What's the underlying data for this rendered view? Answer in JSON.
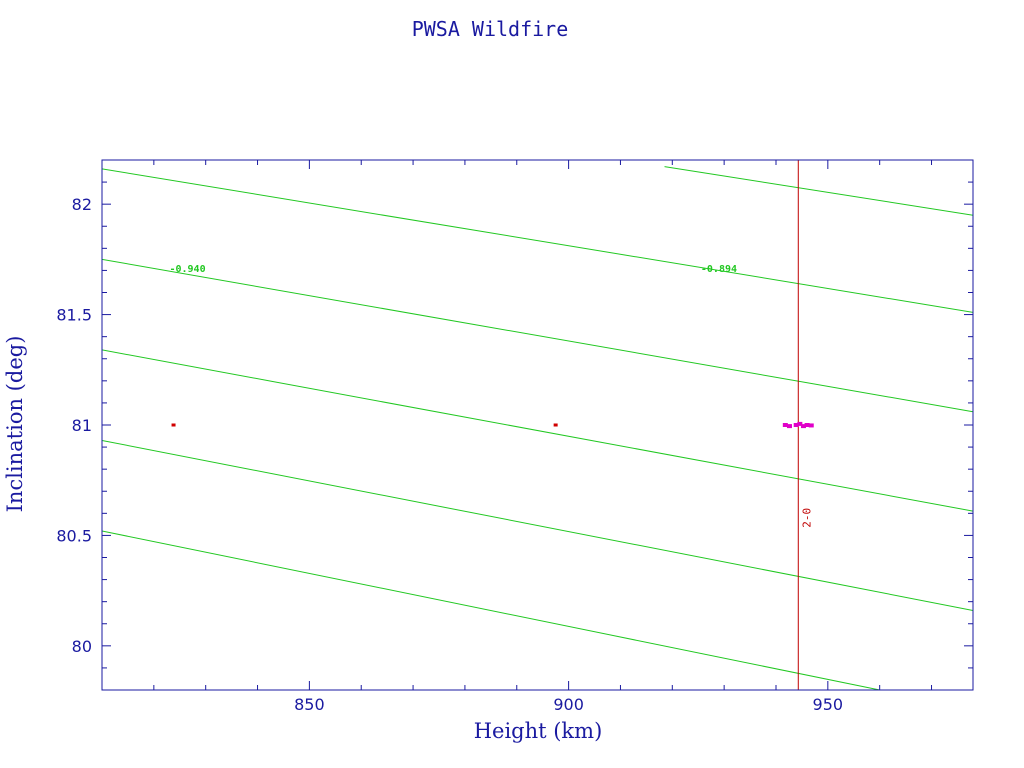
{
  "chart_data": {
    "type": "line",
    "title": "PWSA Wildfire",
    "xlabel": "Height (km)",
    "ylabel": "Inclination (deg)",
    "xlim": [
      810,
      978
    ],
    "ylim": [
      79.8,
      82.2
    ],
    "x_ticks": [
      850,
      900,
      950
    ],
    "x_tick_labels": [
      "850",
      "900",
      "950"
    ],
    "y_ticks": [
      80,
      80.5,
      81,
      81.5,
      82
    ],
    "y_tick_labels": [
      "80",
      "80.5",
      "81",
      "81.5",
      "82"
    ],
    "grid": false,
    "colors": {
      "frame": "#1a1aa0",
      "contour": "#22c822",
      "marker_line": "#c00000",
      "cluster": "#e000c8",
      "point": "#d00000"
    },
    "contours": [
      {
        "start": [
          918.5,
          82.17
        ],
        "end": [
          978,
          81.95
        ]
      },
      {
        "start": [
          810,
          82.16
        ],
        "end": [
          978,
          81.51
        ]
      },
      {
        "start": [
          810,
          81.75
        ],
        "end": [
          978,
          81.06
        ]
      },
      {
        "start": [
          810,
          81.34
        ],
        "end": [
          978,
          80.61
        ]
      },
      {
        "start": [
          810,
          80.93
        ],
        "end": [
          978,
          80.16
        ]
      },
      {
        "start": [
          810,
          80.52
        ],
        "end": [
          960,
          79.8
        ]
      }
    ],
    "contour_labels": [
      {
        "text": "-0.940",
        "x": 826.5,
        "y": 81.71
      },
      {
        "text": "-0.894",
        "x": 929,
        "y": 81.71
      }
    ],
    "marker_line": {
      "x": 944.3,
      "label": "2-0",
      "label_y": 80.58
    },
    "points": [
      {
        "x": 823.8,
        "y": 81.0
      },
      {
        "x": 897.5,
        "y": 81.0
      }
    ],
    "cluster_points": [
      {
        "x": 941.8,
        "y": 81.0
      },
      {
        "x": 942.6,
        "y": 80.995
      },
      {
        "x": 943.9,
        "y": 81.0
      },
      {
        "x": 944.6,
        "y": 81.005
      },
      {
        "x": 945.3,
        "y": 80.995
      },
      {
        "x": 946.0,
        "y": 81.0
      },
      {
        "x": 946.8,
        "y": 80.998
      }
    ]
  }
}
